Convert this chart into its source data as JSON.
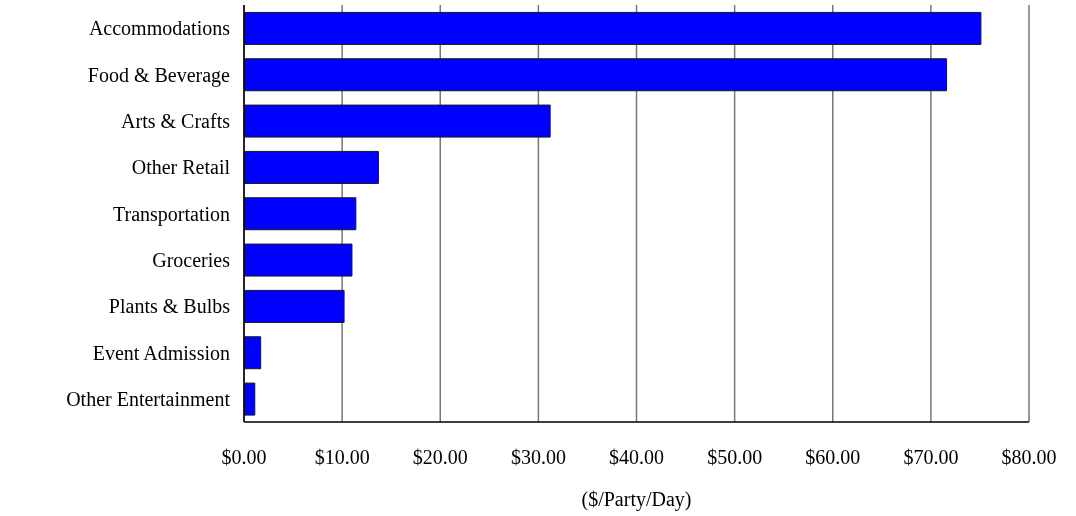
{
  "chart_data": {
    "type": "bar",
    "orientation": "horizontal",
    "xlabel": "($/Party/Day)",
    "categories": [
      "Accommodations",
      "Food & Beverage",
      "Arts & Crafts",
      "Other Retail",
      "Transportation",
      "Groceries",
      "Plants & Bulbs",
      "Event Admission",
      "Other Entertainment"
    ],
    "values": [
      75.1,
      71.6,
      31.2,
      13.7,
      11.4,
      11.0,
      10.2,
      1.7,
      1.1
    ],
    "color": "#0000ff",
    "xlim": [
      0,
      80
    ],
    "xticks": [
      {
        "value": 0,
        "label": "$0.00"
      },
      {
        "value": 10,
        "label": "$10.00"
      },
      {
        "value": 20,
        "label": "$20.00"
      },
      {
        "value": 30,
        "label": "$30.00"
      },
      {
        "value": 40,
        "label": "$40.00"
      },
      {
        "value": 50,
        "label": "$50.00"
      },
      {
        "value": 60,
        "label": "$60.00"
      },
      {
        "value": 70,
        "label": "$70.00"
      },
      {
        "value": 80,
        "label": "$80.00"
      }
    ],
    "grid": "x"
  }
}
